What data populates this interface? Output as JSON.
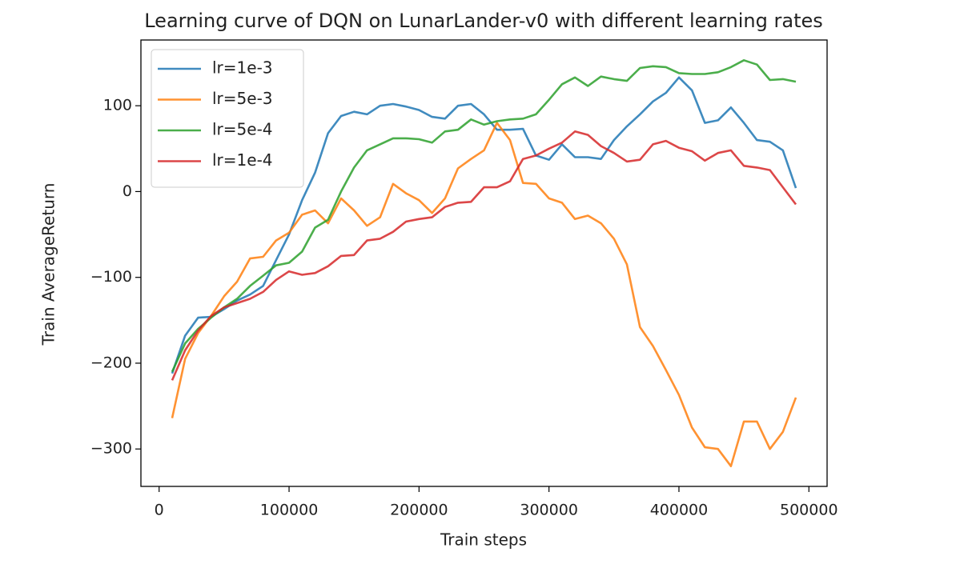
{
  "chart_data": {
    "type": "line",
    "title": "Learning curve of DQN on LunarLander-v0 with different learning rates",
    "xlabel": "Train steps",
    "ylabel": "Train AverageReturn",
    "x": [
      10000,
      20000,
      30000,
      40000,
      50000,
      60000,
      70000,
      80000,
      90000,
      100000,
      110000,
      120000,
      130000,
      140000,
      150000,
      160000,
      170000,
      180000,
      190000,
      200000,
      210000,
      220000,
      230000,
      240000,
      250000,
      260000,
      270000,
      280000,
      290000,
      300000,
      310000,
      320000,
      330000,
      340000,
      350000,
      360000,
      370000,
      380000,
      390000,
      400000,
      410000,
      420000,
      430000,
      440000,
      450000,
      460000,
      470000,
      480000,
      490000
    ],
    "series": [
      {
        "name": "lr=1e-3",
        "color": "#1f77b4",
        "values": [
          -212,
          -168,
          -147,
          -146,
          -137,
          -127,
          -120,
          -110,
          -80,
          -50,
          -10,
          22,
          68,
          88,
          93,
          90,
          100,
          102,
          99,
          95,
          87,
          85,
          100,
          102,
          90,
          72,
          72,
          73,
          42,
          37,
          55,
          40,
          40,
          38,
          60,
          76,
          90,
          105,
          115,
          133,
          118,
          80,
          83,
          98,
          80,
          60,
          58,
          48,
          4
        ]
      },
      {
        "name": "lr=5e-3",
        "color": "#ff7f0e",
        "values": [
          -264,
          -195,
          -165,
          -145,
          -122,
          -105,
          -78,
          -76,
          -57,
          -48,
          -27,
          -22,
          -37,
          -8,
          -22,
          -40,
          -30,
          9,
          -2,
          -10,
          -25,
          -8,
          27,
          38,
          48,
          80,
          60,
          10,
          9,
          -8,
          -13,
          -32,
          -28,
          -37,
          -55,
          -85,
          -158,
          -180,
          -208,
          -237,
          -275,
          -298,
          -300,
          -320,
          -268,
          -268,
          -300,
          -280,
          -240
        ]
      },
      {
        "name": "lr=5e-4",
        "color": "#2ca02c",
        "values": [
          -210,
          -177,
          -160,
          -147,
          -135,
          -125,
          -110,
          -98,
          -86,
          -83,
          -70,
          -42,
          -33,
          0,
          28,
          48,
          55,
          62,
          62,
          61,
          57,
          70,
          72,
          84,
          78,
          82,
          84,
          85,
          90,
          107,
          125,
          133,
          123,
          134,
          131,
          129,
          144,
          146,
          145,
          138,
          137,
          137,
          139,
          145,
          153,
          148,
          130,
          131,
          128
        ]
      },
      {
        "name": "lr=1e-4",
        "color": "#d62728",
        "values": [
          -220,
          -185,
          -162,
          -145,
          -135,
          -130,
          -125,
          -117,
          -103,
          -93,
          -97,
          -95,
          -87,
          -75,
          -74,
          -57,
          -55,
          -47,
          -35,
          -32,
          -30,
          -18,
          -13,
          -12,
          5,
          5,
          12,
          38,
          42,
          50,
          57,
          70,
          66,
          53,
          45,
          35,
          37,
          55,
          59,
          51,
          47,
          36,
          45,
          48,
          30,
          28,
          25,
          5,
          -15
        ]
      }
    ],
    "xlim": [
      -14000,
      514000
    ],
    "ylim": [
      -343.6,
      176.6
    ],
    "xticks": [
      0,
      100000,
      200000,
      300000,
      400000,
      500000
    ],
    "yticks": [
      {
        "value": -300,
        "label": "−300"
      },
      {
        "value": -200,
        "label": "−200"
      },
      {
        "value": -100,
        "label": "−100"
      },
      0,
      100
    ],
    "grid": false,
    "legend": "upper left"
  }
}
